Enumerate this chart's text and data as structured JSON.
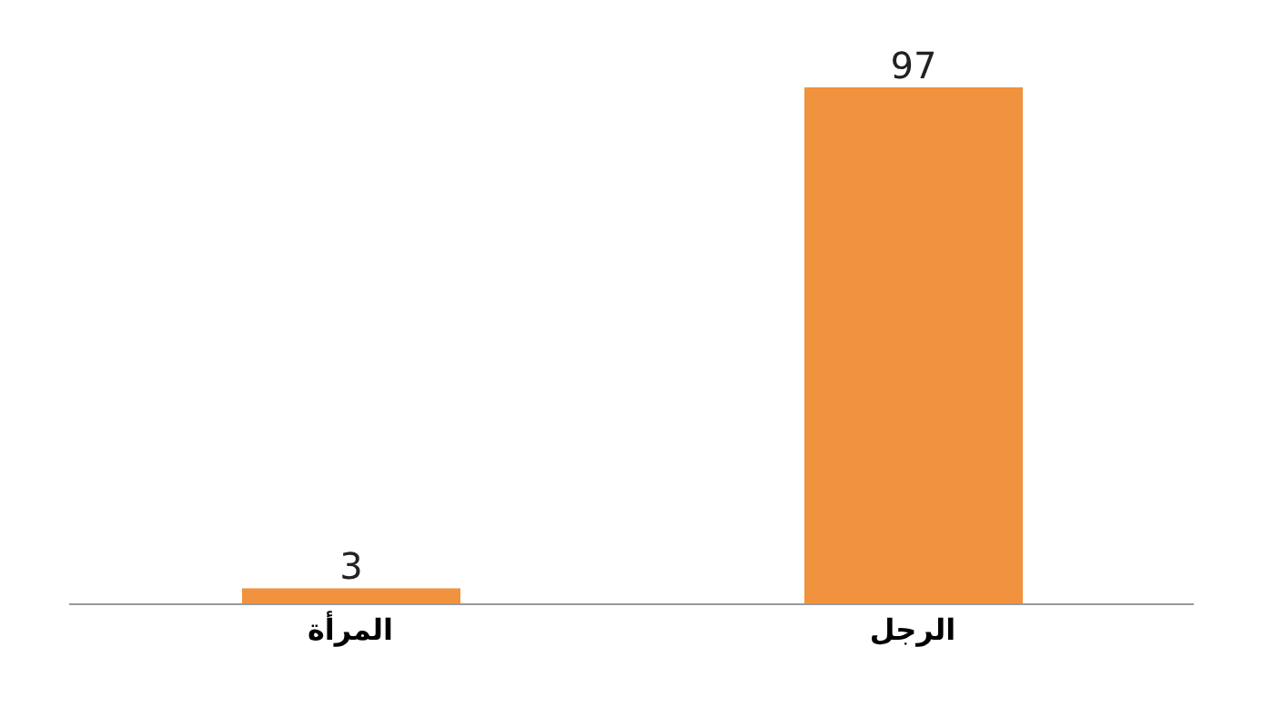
{
  "chart_data": {
    "type": "bar",
    "categories": [
      "المرأة",
      "الرجل"
    ],
    "values": [
      3,
      97
    ],
    "color": "#f0923e",
    "data_labels": true
  }
}
